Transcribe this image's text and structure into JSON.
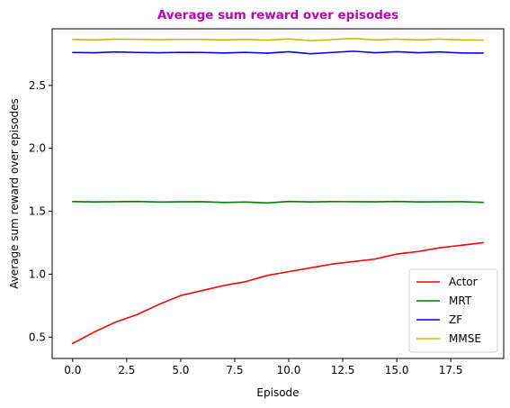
{
  "chart_data": {
    "type": "line",
    "title": "Average sum reward over episodes",
    "title_color": "#bf00bf",
    "xlabel": "Episode",
    "ylabel": "Average sum reward over episodes",
    "xlim": [
      -0.95,
      19.95
    ],
    "ylim": [
      0.33,
      2.95
    ],
    "xticks": [
      0,
      2.5,
      5,
      7.5,
      10,
      12.5,
      15,
      17.5
    ],
    "xtick_labels": [
      "0.0",
      "2.5",
      "5.0",
      "7.5",
      "10.0",
      "12.5",
      "15.0",
      "17.5"
    ],
    "yticks": [
      0.5,
      1.0,
      1.5,
      2.0,
      2.5
    ],
    "ytick_labels": [
      "0.5",
      "1.0",
      "1.5",
      "2.0",
      "2.5"
    ],
    "x": [
      0,
      1,
      2,
      3,
      4,
      5,
      6,
      7,
      8,
      9,
      10,
      11,
      12,
      13,
      14,
      15,
      16,
      17,
      18,
      19
    ],
    "legend_position": "lower right",
    "series": [
      {
        "name": "Actor",
        "color": "#ff0000",
        "values": [
          0.45,
          0.54,
          0.62,
          0.68,
          0.76,
          0.83,
          0.87,
          0.91,
          0.94,
          0.99,
          1.02,
          1.05,
          1.08,
          1.1,
          1.12,
          1.16,
          1.18,
          1.21,
          1.23,
          1.25
        ]
      },
      {
        "name": "MRT",
        "color": "#008000",
        "values": [
          1.577,
          1.574,
          1.576,
          1.578,
          1.573,
          1.575,
          1.576,
          1.57,
          1.573,
          1.566,
          1.578,
          1.574,
          1.577,
          1.576,
          1.575,
          1.578,
          1.574,
          1.575,
          1.576,
          1.571
        ]
      },
      {
        "name": "ZF",
        "color": "#0000ff",
        "values": [
          2.762,
          2.76,
          2.766,
          2.762,
          2.76,
          2.763,
          2.762,
          2.758,
          2.763,
          2.756,
          2.768,
          2.752,
          2.762,
          2.772,
          2.76,
          2.768,
          2.76,
          2.766,
          2.758,
          2.757
        ]
      },
      {
        "name": "MMSE",
        "color": "#bfbf00",
        "values": [
          2.866,
          2.862,
          2.868,
          2.866,
          2.864,
          2.866,
          2.866,
          2.862,
          2.866,
          2.86,
          2.87,
          2.856,
          2.864,
          2.874,
          2.862,
          2.868,
          2.862,
          2.868,
          2.862,
          2.86
        ]
      }
    ]
  }
}
